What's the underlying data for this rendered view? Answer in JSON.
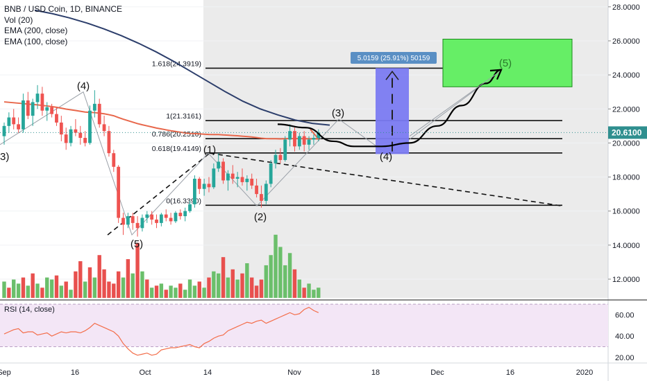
{
  "legend": {
    "title": "BNB / USD Coin, 1D, BINANCE",
    "indicators": [
      "Vol (20)",
      "EMA (200, close)",
      "EMA (100, close)"
    ]
  },
  "rsi_panel": {
    "label": "RSI (14, close)"
  },
  "colors": {
    "up": "#26a69a",
    "down": "#ef5350",
    "vol_up": "#6bbf6b",
    "vol_down": "#e8504e",
    "ema200": "#2c3e6b",
    "ema100": "#e8674b",
    "rsi": "#f36d49",
    "rsi_band": "#f3e6f6",
    "target_box": "#66ee66",
    "range_box": "#7b7bf2",
    "price_tag": "#2f8f8f",
    "range_label_bg": "#5a8fc4",
    "shade": "#ebebeb"
  },
  "chart_data": [
    {
      "type": "candlestick",
      "title": "BNB / USD Coin, 1D, BINANCE",
      "y_axis": {
        "ticks": [
          "28.0000",
          "26.0000",
          "24.0000",
          "22.0000",
          "20.0000",
          "18.0000",
          "16.0000",
          "14.0000",
          "12.0000"
        ],
        "ylim": [
          10.9,
          28.4
        ]
      },
      "x_axis": {
        "ticks": [
          "Sep",
          "16",
          "Oct",
          "14",
          "Nov",
          "18",
          "Dec",
          "16",
          "2020"
        ]
      },
      "last_price": "20.6100",
      "candles": [
        {
          "o": 20.4,
          "h": 21.2,
          "l": 19.9,
          "c": 21.0
        },
        {
          "o": 21.0,
          "h": 21.8,
          "l": 20.6,
          "c": 21.5
        },
        {
          "o": 21.5,
          "h": 22.0,
          "l": 20.8,
          "c": 21.1
        },
        {
          "o": 21.1,
          "h": 21.5,
          "l": 20.6,
          "c": 20.8
        },
        {
          "o": 20.8,
          "h": 22.9,
          "l": 20.6,
          "c": 22.5
        },
        {
          "o": 22.5,
          "h": 23.0,
          "l": 21.4,
          "c": 21.6
        },
        {
          "o": 21.6,
          "h": 22.6,
          "l": 21.0,
          "c": 22.4
        },
        {
          "o": 22.4,
          "h": 23.4,
          "l": 22.0,
          "c": 22.9
        },
        {
          "o": 22.9,
          "h": 23.3,
          "l": 21.6,
          "c": 21.9
        },
        {
          "o": 21.9,
          "h": 22.4,
          "l": 21.3,
          "c": 22.1
        },
        {
          "o": 22.1,
          "h": 22.3,
          "l": 21.5,
          "c": 21.7
        },
        {
          "o": 21.7,
          "h": 22.1,
          "l": 21.0,
          "c": 21.2
        },
        {
          "o": 21.2,
          "h": 21.6,
          "l": 20.1,
          "c": 20.5
        },
        {
          "o": 20.5,
          "h": 20.9,
          "l": 19.6,
          "c": 20.0
        },
        {
          "o": 20.0,
          "h": 21.0,
          "l": 19.8,
          "c": 20.8
        },
        {
          "o": 20.8,
          "h": 21.4,
          "l": 20.4,
          "c": 20.6
        },
        {
          "o": 20.6,
          "h": 21.0,
          "l": 19.9,
          "c": 20.3
        },
        {
          "o": 20.3,
          "h": 20.7,
          "l": 19.8,
          "c": 20.0
        },
        {
          "o": 20.0,
          "h": 22.2,
          "l": 19.9,
          "c": 21.9
        },
        {
          "o": 21.9,
          "h": 23.1,
          "l": 21.5,
          "c": 22.3
        },
        {
          "o": 22.3,
          "h": 22.6,
          "l": 20.9,
          "c": 21.1
        },
        {
          "o": 21.1,
          "h": 21.6,
          "l": 20.4,
          "c": 20.7
        },
        {
          "o": 20.7,
          "h": 21.0,
          "l": 19.2,
          "c": 19.4
        },
        {
          "o": 19.4,
          "h": 19.6,
          "l": 18.3,
          "c": 18.6
        },
        {
          "o": 18.6,
          "h": 18.7,
          "l": 15.3,
          "c": 15.6
        },
        {
          "o": 15.6,
          "h": 15.9,
          "l": 14.6,
          "c": 15.2
        },
        {
          "o": 15.2,
          "h": 15.9,
          "l": 15.0,
          "c": 15.7
        },
        {
          "o": 15.7,
          "h": 15.9,
          "l": 14.9,
          "c": 15.3
        },
        {
          "o": 15.3,
          "h": 15.7,
          "l": 14.5,
          "c": 15.0
        },
        {
          "o": 15.0,
          "h": 15.8,
          "l": 14.8,
          "c": 15.6
        },
        {
          "o": 15.6,
          "h": 16.0,
          "l": 15.3,
          "c": 15.8
        },
        {
          "o": 15.8,
          "h": 16.0,
          "l": 15.2,
          "c": 15.5
        },
        {
          "o": 15.5,
          "h": 15.8,
          "l": 15.0,
          "c": 15.3
        },
        {
          "o": 15.3,
          "h": 15.9,
          "l": 15.1,
          "c": 15.8
        },
        {
          "o": 15.8,
          "h": 16.1,
          "l": 15.4,
          "c": 15.6
        },
        {
          "o": 15.6,
          "h": 15.9,
          "l": 15.2,
          "c": 15.4
        },
        {
          "o": 15.4,
          "h": 16.0,
          "l": 15.3,
          "c": 15.9
        },
        {
          "o": 15.9,
          "h": 16.1,
          "l": 15.5,
          "c": 15.7
        },
        {
          "o": 15.7,
          "h": 16.2,
          "l": 15.4,
          "c": 16.0
        },
        {
          "o": 16.0,
          "h": 16.6,
          "l": 15.9,
          "c": 16.4
        },
        {
          "o": 16.4,
          "h": 18.1,
          "l": 16.2,
          "c": 17.9
        },
        {
          "o": 17.9,
          "h": 18.0,
          "l": 17.0,
          "c": 17.3
        },
        {
          "o": 17.3,
          "h": 17.9,
          "l": 16.9,
          "c": 17.6
        },
        {
          "o": 17.6,
          "h": 18.0,
          "l": 17.1,
          "c": 17.4
        },
        {
          "o": 17.4,
          "h": 18.8,
          "l": 17.3,
          "c": 18.5
        },
        {
          "o": 18.5,
          "h": 19.4,
          "l": 18.3,
          "c": 18.9
        },
        {
          "o": 18.9,
          "h": 19.1,
          "l": 17.6,
          "c": 17.8
        },
        {
          "o": 17.8,
          "h": 18.4,
          "l": 17.2,
          "c": 18.2
        },
        {
          "o": 18.2,
          "h": 18.7,
          "l": 17.6,
          "c": 17.9
        },
        {
          "o": 17.9,
          "h": 18.3,
          "l": 17.4,
          "c": 18.0
        },
        {
          "o": 18.0,
          "h": 18.5,
          "l": 17.5,
          "c": 17.7
        },
        {
          "o": 17.7,
          "h": 18.1,
          "l": 17.2,
          "c": 17.9
        },
        {
          "o": 17.9,
          "h": 18.2,
          "l": 17.3,
          "c": 17.5
        },
        {
          "o": 17.5,
          "h": 17.9,
          "l": 16.8,
          "c": 17.0
        },
        {
          "o": 17.0,
          "h": 17.5,
          "l": 16.2,
          "c": 16.6
        },
        {
          "o": 16.6,
          "h": 17.8,
          "l": 16.4,
          "c": 17.6
        },
        {
          "o": 17.6,
          "h": 19.0,
          "l": 17.4,
          "c": 18.8
        },
        {
          "o": 18.8,
          "h": 19.6,
          "l": 18.5,
          "c": 19.3
        },
        {
          "o": 19.3,
          "h": 19.7,
          "l": 18.8,
          "c": 19.0
        },
        {
          "o": 19.0,
          "h": 20.4,
          "l": 18.9,
          "c": 20.2
        },
        {
          "o": 20.2,
          "h": 21.1,
          "l": 19.8,
          "c": 20.7
        },
        {
          "o": 20.7,
          "h": 20.9,
          "l": 19.5,
          "c": 19.8
        },
        {
          "o": 19.8,
          "h": 20.6,
          "l": 19.6,
          "c": 20.4
        },
        {
          "o": 20.4,
          "h": 20.7,
          "l": 19.5,
          "c": 19.9
        },
        {
          "o": 19.9,
          "h": 20.4,
          "l": 19.6,
          "c": 20.2
        },
        {
          "o": 20.2,
          "h": 20.5,
          "l": 19.9,
          "c": 20.3
        },
        {
          "o": 20.3,
          "h": 20.8,
          "l": 20.1,
          "c": 20.6
        }
      ]
    },
    {
      "type": "bar",
      "title": "Vol (20)",
      "values": [
        8,
        5,
        9,
        7,
        10,
        6,
        12,
        7,
        5,
        10,
        9,
        11,
        6,
        8,
        4,
        13,
        18,
        8,
        15,
        10,
        21,
        14,
        8,
        7,
        13,
        10,
        19,
        12,
        27,
        13,
        9,
        5,
        6,
        7,
        4,
        6,
        5,
        7,
        4,
        9,
        6,
        8,
        5,
        10,
        13,
        12,
        20,
        10,
        14,
        9,
        12,
        17,
        10,
        6,
        9,
        16,
        21,
        31,
        25,
        16,
        22,
        14,
        9,
        5,
        7,
        4,
        5
      ],
      "up": [
        true,
        false,
        true,
        true,
        false,
        true,
        false,
        true,
        false,
        true,
        true,
        false,
        true,
        false,
        true,
        false,
        false,
        true,
        false,
        true,
        false,
        false,
        false,
        false,
        false,
        true,
        false,
        true,
        false,
        true,
        false,
        true,
        false,
        true,
        false,
        true,
        true,
        false,
        true,
        true,
        true,
        false,
        true,
        false,
        true,
        true,
        false,
        true,
        false,
        true,
        false,
        true,
        false,
        false,
        false,
        true,
        true,
        true,
        true,
        true,
        true,
        false,
        true,
        false,
        true,
        true,
        true
      ]
    },
    {
      "type": "line",
      "title": "RSI (14, close)",
      "y_axis": {
        "ticks": [
          "60.00",
          "40.00",
          "20.00"
        ],
        "ylim": [
          16,
          72
        ]
      },
      "band": [
        30,
        70
      ],
      "values": [
        42,
        44,
        46,
        47,
        43,
        44,
        44,
        41,
        42,
        43,
        40,
        42,
        44,
        43,
        44,
        44,
        43,
        45,
        48,
        52,
        50,
        48,
        46,
        44,
        40,
        33,
        28,
        24,
        22,
        23,
        24,
        22,
        23,
        27,
        28,
        29,
        29,
        30,
        31,
        32,
        30,
        29,
        33,
        35,
        38,
        40,
        41,
        45,
        47,
        49,
        51,
        53,
        52,
        54,
        55,
        52,
        54,
        56,
        58,
        60,
        62,
        60,
        61,
        65,
        67,
        64,
        62
      ]
    },
    {
      "type": "annotations",
      "fibonacci": [
        {
          "label": "1.618(24.3919)",
          "value": 24.3919
        },
        {
          "label": "1(21.3161)",
          "value": 21.3161
        },
        {
          "label": "0.786(20.2510)",
          "value": 20.251
        },
        {
          "label": "0.618(19.4149)",
          "value": 19.4149
        },
        {
          "label": "0(16.3390)",
          "value": 16.339
        }
      ],
      "wave_labels": [
        "3)",
        "(4)",
        "(5)",
        "(1)",
        "(2)",
        "(3)",
        "(4)",
        "(5)"
      ],
      "range_measure": "5.0159 (25.91%) 50159"
    }
  ]
}
